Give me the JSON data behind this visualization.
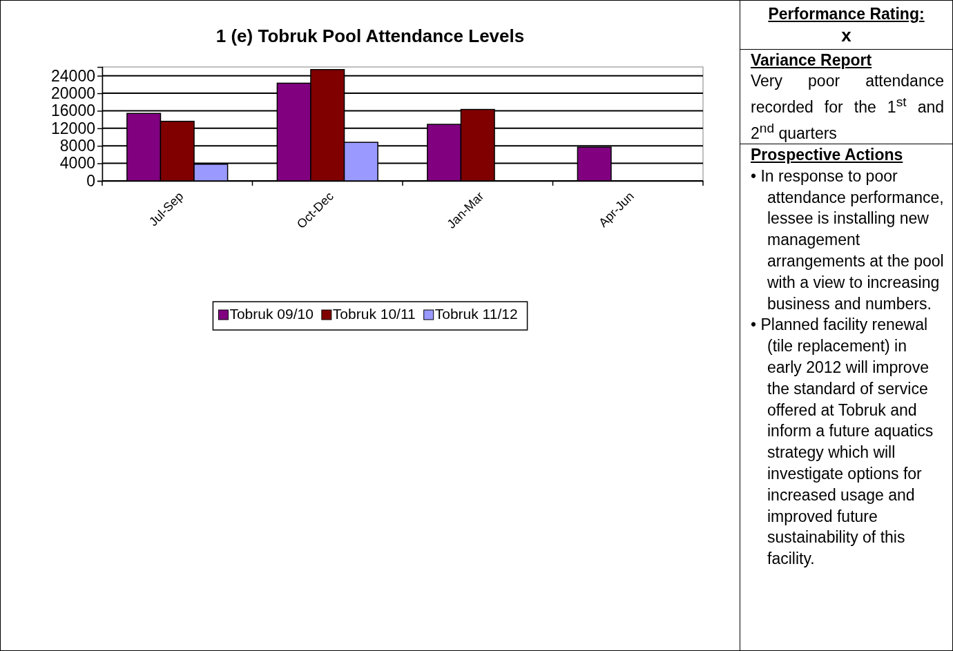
{
  "chart_data": [
    {
      "type": "bar",
      "title": "1 (e) Tobruk Pool Attendance Levels",
      "categories": [
        "Jul-Sep",
        "Oct-Dec",
        "Jan-Mar",
        "Apr-Jun"
      ],
      "series": [
        {
          "name": "Tobruk 09/10",
          "color": "#800080",
          "values": [
            15400,
            22300,
            12900,
            7700
          ]
        },
        {
          "name": "Tobruk 10/11",
          "color": "#800000",
          "values": [
            13600,
            25400,
            16300,
            null
          ]
        },
        {
          "name": "Tobruk 11/12",
          "color": "#9999ff",
          "values": [
            3800,
            8800,
            null,
            null
          ]
        }
      ],
      "ylim": [
        0,
        26000
      ],
      "yticks": [
        0,
        4000,
        8000,
        12000,
        16000,
        20000,
        24000
      ],
      "grid": "y",
      "legend": "bottom"
    },
    {
      "type": "other",
      "title": "Performance Rating:",
      "annotations": [
        "x",
        "Variance Report",
        "Very poor attendance recorded for the 1$^{st}$ and 2$^{nd}$ quarters",
        "Prospective Actions",
        "• In response to poor attendance performance, lessee is installing new management arrangements at the pool with a view to increasing business and numbers.",
        "• Planned facility renewal (tile replacement) in early 2012 will improve the standard of service offered at Tobruk and inform a future aquatics strategy which will investigate options for increased usage and improved future sustainability of this facility."
      ]
    }
  ]
}
